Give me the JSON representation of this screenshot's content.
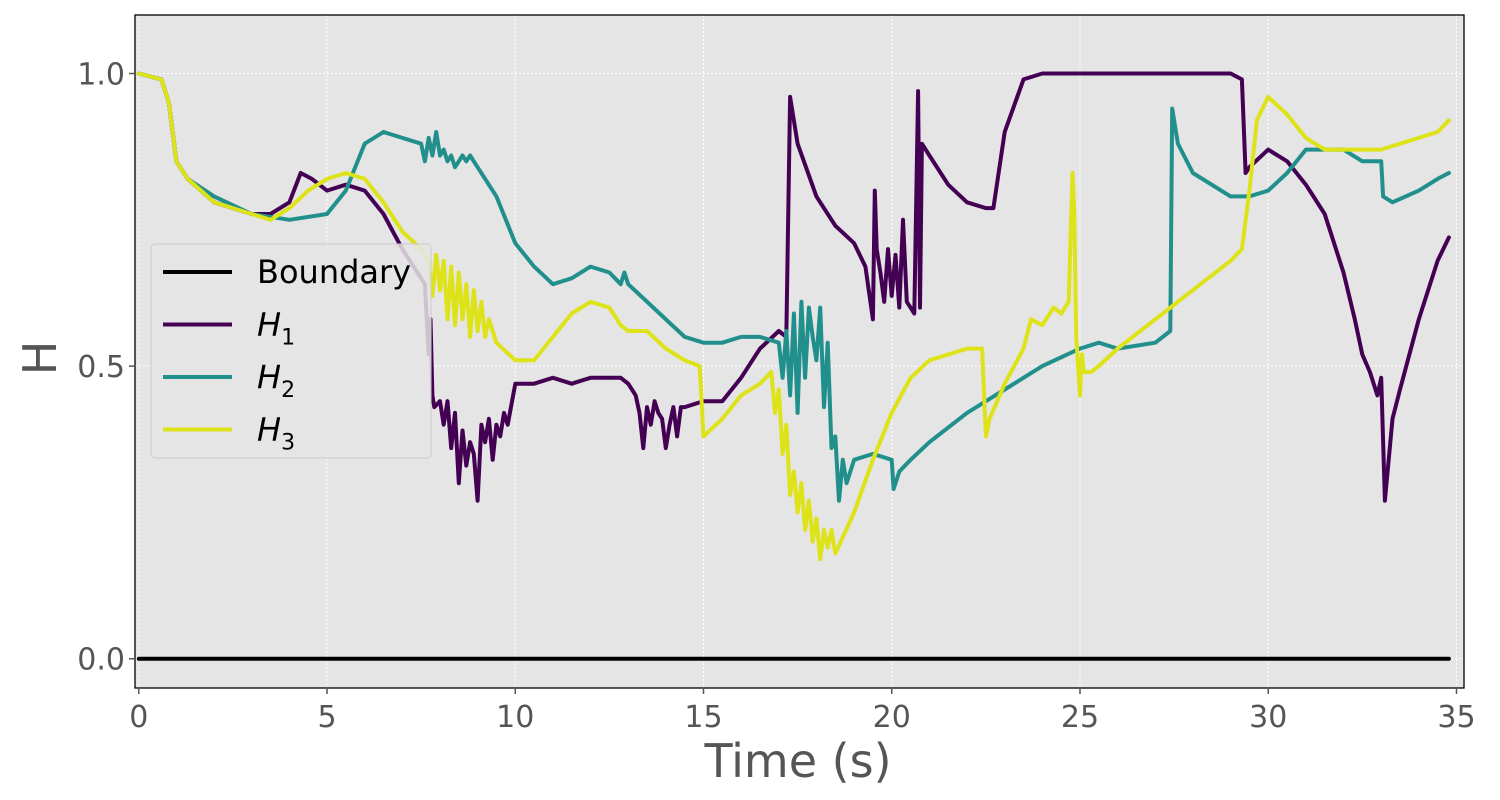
{
  "chart_data": {
    "type": "line",
    "xlabel": "Time (s)",
    "ylabel": "H",
    "xlim": [
      -0.1,
      35.2
    ],
    "ylim": [
      -0.05,
      1.1
    ],
    "xticks": [
      0,
      5,
      10,
      15,
      20,
      25,
      30,
      35
    ],
    "xtick_labels": [
      "0",
      "5",
      "10",
      "15",
      "20",
      "25",
      "30",
      "35"
    ],
    "yticks": [
      0.0,
      0.5,
      1.0
    ],
    "ytick_labels": [
      "0.0",
      "0.5",
      "1.0"
    ],
    "grid": true,
    "legend_position": "center-left",
    "series": [
      {
        "name": "Boundary",
        "label_main": "Boundary",
        "label_sub": "",
        "color": "#000000",
        "x": [
          0,
          34.8
        ],
        "y": [
          0,
          0
        ]
      },
      {
        "name": "H_1",
        "label_main": "H",
        "label_sub": "1",
        "color": "#440154",
        "x": [
          0,
          0.6,
          0.8,
          1.0,
          1.3,
          2.0,
          3.0,
          3.5,
          4.0,
          4.3,
          4.6,
          5.0,
          5.5,
          6.0,
          6.5,
          7.0,
          7.3,
          7.5,
          7.6,
          7.7,
          7.75,
          7.8,
          7.85,
          8.0,
          8.1,
          8.2,
          8.3,
          8.4,
          8.5,
          8.6,
          8.7,
          8.8,
          8.9,
          9.0,
          9.1,
          9.2,
          9.3,
          9.4,
          9.5,
          9.6,
          9.7,
          9.8,
          10.0,
          10.5,
          11.0,
          11.5,
          12.0,
          12.5,
          12.8,
          13.0,
          13.2,
          13.3,
          13.4,
          13.5,
          13.6,
          13.7,
          13.8,
          13.9,
          14.0,
          14.1,
          14.2,
          14.3,
          14.4,
          14.5,
          15.0,
          15.5,
          16.0,
          16.5,
          17.0,
          17.2,
          17.3,
          17.5,
          18.0,
          18.5,
          19.0,
          19.3,
          19.5,
          19.55,
          19.6,
          19.7,
          19.8,
          19.9,
          20.0,
          20.1,
          20.2,
          20.3,
          20.4,
          20.5,
          20.6,
          20.7,
          20.75,
          20.8,
          21.0,
          21.5,
          22.0,
          22.5,
          22.7,
          23.0,
          23.5,
          24.0,
          25.0,
          26.0,
          27.0,
          28.0,
          29.0,
          29.3,
          29.4,
          29.5,
          30.0,
          30.5,
          31.0,
          31.5,
          32.0,
          32.3,
          32.5,
          32.7,
          32.9,
          33.0,
          33.1,
          33.3,
          33.5,
          34.0,
          34.5,
          34.8
        ],
        "y": [
          1.0,
          0.99,
          0.95,
          0.85,
          0.82,
          0.78,
          0.76,
          0.76,
          0.78,
          0.83,
          0.82,
          0.8,
          0.81,
          0.8,
          0.76,
          0.7,
          0.67,
          0.65,
          0.64,
          0.52,
          0.58,
          0.45,
          0.43,
          0.44,
          0.4,
          0.44,
          0.36,
          0.42,
          0.3,
          0.39,
          0.33,
          0.37,
          0.35,
          0.27,
          0.4,
          0.37,
          0.41,
          0.34,
          0.4,
          0.38,
          0.42,
          0.4,
          0.47,
          0.47,
          0.48,
          0.47,
          0.48,
          0.48,
          0.48,
          0.47,
          0.45,
          0.42,
          0.36,
          0.43,
          0.4,
          0.44,
          0.42,
          0.41,
          0.36,
          0.4,
          0.43,
          0.38,
          0.43,
          0.43,
          0.44,
          0.44,
          0.48,
          0.53,
          0.56,
          0.55,
          0.96,
          0.88,
          0.79,
          0.74,
          0.71,
          0.67,
          0.58,
          0.8,
          0.7,
          0.66,
          0.61,
          0.7,
          0.62,
          0.69,
          0.6,
          0.75,
          0.61,
          0.6,
          0.59,
          0.97,
          0.6,
          0.88,
          0.86,
          0.81,
          0.78,
          0.77,
          0.77,
          0.9,
          0.99,
          1.0,
          1.0,
          1.0,
          1.0,
          1.0,
          1.0,
          0.99,
          0.83,
          0.84,
          0.87,
          0.85,
          0.81,
          0.76,
          0.66,
          0.58,
          0.52,
          0.49,
          0.45,
          0.48,
          0.27,
          0.41,
          0.46,
          0.58,
          0.68,
          0.72
        ]
      },
      {
        "name": "H_2",
        "label_main": "H",
        "label_sub": "2",
        "color": "#21908c",
        "x": [
          0,
          0.6,
          0.8,
          1.0,
          1.3,
          2.0,
          3.0,
          4.0,
          5.0,
          5.5,
          6.0,
          6.5,
          7.0,
          7.5,
          7.6,
          7.7,
          7.8,
          7.9,
          8.0,
          8.1,
          8.2,
          8.3,
          8.4,
          8.5,
          8.6,
          8.7,
          8.8,
          8.9,
          9.0,
          9.5,
          10.0,
          10.5,
          11.0,
          11.5,
          12.0,
          12.5,
          12.8,
          12.9,
          13.0,
          14.0,
          14.5,
          15.0,
          15.5,
          16.0,
          16.5,
          17.0,
          17.1,
          17.2,
          17.3,
          17.4,
          17.5,
          17.6,
          17.7,
          17.8,
          17.9,
          18.0,
          18.1,
          18.2,
          18.3,
          18.4,
          18.5,
          18.6,
          18.7,
          18.8,
          19.0,
          19.5,
          20.0,
          20.05,
          20.2,
          20.5,
          21.0,
          22.0,
          23.0,
          24.0,
          25.0,
          25.5,
          26.0,
          27.0,
          27.4,
          27.45,
          27.6,
          28.0,
          29.0,
          29.5,
          30.0,
          30.5,
          31.0,
          31.5,
          32.0,
          32.5,
          33.0,
          33.05,
          33.3,
          34.0,
          34.5,
          34.8
        ],
        "y": [
          1.0,
          0.99,
          0.95,
          0.85,
          0.82,
          0.79,
          0.76,
          0.75,
          0.76,
          0.8,
          0.88,
          0.9,
          0.89,
          0.88,
          0.85,
          0.89,
          0.86,
          0.9,
          0.86,
          0.87,
          0.85,
          0.86,
          0.84,
          0.85,
          0.86,
          0.85,
          0.86,
          0.85,
          0.84,
          0.79,
          0.71,
          0.67,
          0.64,
          0.65,
          0.67,
          0.66,
          0.64,
          0.66,
          0.64,
          0.58,
          0.55,
          0.54,
          0.54,
          0.55,
          0.55,
          0.54,
          0.48,
          0.56,
          0.45,
          0.59,
          0.42,
          0.61,
          0.48,
          0.6,
          0.55,
          0.51,
          0.6,
          0.43,
          0.54,
          0.36,
          0.38,
          0.27,
          0.34,
          0.3,
          0.34,
          0.35,
          0.34,
          0.29,
          0.32,
          0.34,
          0.37,
          0.42,
          0.46,
          0.5,
          0.53,
          0.54,
          0.53,
          0.54,
          0.56,
          0.94,
          0.88,
          0.83,
          0.79,
          0.79,
          0.8,
          0.83,
          0.87,
          0.87,
          0.87,
          0.85,
          0.85,
          0.79,
          0.78,
          0.8,
          0.82,
          0.83
        ]
      },
      {
        "name": "H_3",
        "label_main": "H",
        "label_sub": "3",
        "color": "#dde318",
        "x": [
          0,
          0.6,
          0.8,
          1.0,
          1.3,
          2.0,
          3.0,
          3.5,
          4.0,
          4.5,
          5.0,
          5.5,
          6.0,
          6.5,
          7.0,
          7.5,
          7.7,
          7.8,
          7.9,
          8.0,
          8.1,
          8.2,
          8.3,
          8.4,
          8.5,
          8.6,
          8.7,
          8.8,
          8.9,
          9.0,
          9.1,
          9.2,
          9.3,
          9.5,
          10.0,
          10.5,
          11.0,
          11.5,
          12.0,
          12.5,
          12.8,
          13.0,
          13.5,
          14.0,
          14.5,
          14.9,
          15.0,
          15.5,
          16.0,
          16.5,
          16.8,
          16.9,
          17.0,
          17.1,
          17.2,
          17.3,
          17.4,
          17.5,
          17.6,
          17.7,
          17.8,
          17.9,
          18.0,
          18.1,
          18.2,
          18.3,
          18.4,
          18.5,
          19.0,
          19.5,
          20.0,
          20.5,
          21.0,
          22.0,
          22.4,
          22.5,
          22.6,
          23.0,
          23.5,
          23.7,
          24.0,
          24.3,
          24.5,
          24.7,
          24.8,
          24.85,
          24.9,
          25.0,
          25.05,
          25.1,
          25.3,
          25.5,
          26.0,
          27.0,
          28.0,
          29.0,
          29.3,
          29.5,
          29.7,
          30.0,
          30.5,
          31.0,
          31.5,
          32.0,
          32.5,
          33.0,
          33.5,
          34.0,
          34.5,
          34.8
        ],
        "y": [
          1.0,
          0.99,
          0.95,
          0.85,
          0.82,
          0.78,
          0.76,
          0.75,
          0.77,
          0.8,
          0.82,
          0.83,
          0.82,
          0.78,
          0.73,
          0.7,
          0.68,
          0.62,
          0.69,
          0.63,
          0.68,
          0.58,
          0.67,
          0.57,
          0.66,
          0.58,
          0.64,
          0.55,
          0.63,
          0.56,
          0.61,
          0.55,
          0.58,
          0.54,
          0.51,
          0.51,
          0.55,
          0.59,
          0.61,
          0.6,
          0.57,
          0.56,
          0.56,
          0.53,
          0.51,
          0.5,
          0.38,
          0.41,
          0.45,
          0.47,
          0.49,
          0.42,
          0.46,
          0.35,
          0.4,
          0.28,
          0.32,
          0.25,
          0.3,
          0.22,
          0.27,
          0.2,
          0.24,
          0.17,
          0.22,
          0.19,
          0.22,
          0.18,
          0.25,
          0.34,
          0.42,
          0.48,
          0.51,
          0.53,
          0.53,
          0.38,
          0.41,
          0.47,
          0.53,
          0.58,
          0.57,
          0.6,
          0.59,
          0.61,
          0.83,
          0.76,
          0.55,
          0.45,
          0.52,
          0.49,
          0.49,
          0.5,
          0.53,
          0.58,
          0.63,
          0.68,
          0.7,
          0.8,
          0.92,
          0.96,
          0.93,
          0.89,
          0.87,
          0.87,
          0.87,
          0.87,
          0.88,
          0.89,
          0.9,
          0.92
        ]
      }
    ]
  }
}
